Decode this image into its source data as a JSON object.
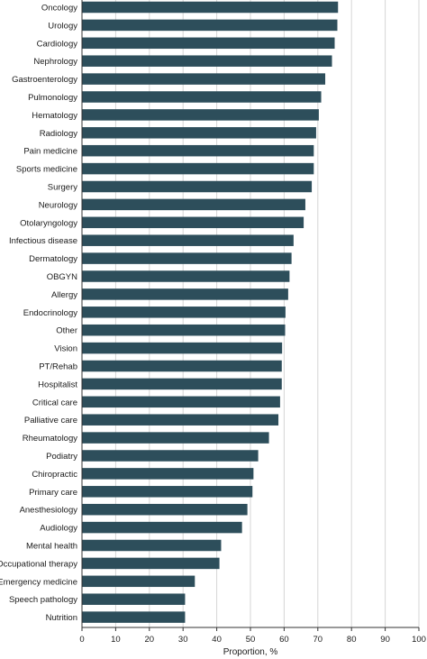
{
  "chart_data": {
    "type": "bar",
    "orientation": "horizontal",
    "categories": [
      "Oncology",
      "Urology",
      "Cardiology",
      "Nephrology",
      "Gastroenterology",
      "Pulmonology",
      "Hematology",
      "Radiology",
      "Pain medicine",
      "Sports medicine",
      "Surgery",
      "Neurology",
      "Otolaryngology",
      "Infectious disease",
      "Dermatology",
      "OBGYN",
      "Allergy",
      "Endocrinology",
      "Other",
      "Vision",
      "PT/Rehab",
      "Hospitalist",
      "Critical care",
      "Palliative care",
      "Rheumatology",
      "Podiatry",
      "Chiropractic",
      "Primary care",
      "Anesthesiology",
      "Audiology",
      "Mental health",
      "Occupational therapy",
      "Emergency medicine",
      "Speech pathology",
      "Nutrition"
    ],
    "values": [
      76,
      75.8,
      75,
      74.2,
      72.2,
      71,
      70.3,
      69.5,
      68.8,
      68.8,
      68.2,
      66.3,
      65.8,
      62.8,
      62.2,
      61.6,
      61.2,
      60.4,
      60.3,
      59.4,
      59.3,
      59.3,
      58.8,
      58.3,
      55.5,
      52.3,
      50.9,
      50.6,
      49.1,
      47.5,
      41.3,
      40.8,
      33.5,
      30.6,
      30.6
    ],
    "xlabel": "Proportion, %",
    "xlim": [
      0,
      100
    ],
    "xticks": [
      "0",
      "10",
      "20",
      "30",
      "40",
      "50",
      "60",
      "70",
      "80",
      "90",
      "100"
    ],
    "grid": "vertical",
    "bar_color": "#2d4e5b",
    "grid_color": "#d5d5d5",
    "axis_color": "#333333"
  }
}
